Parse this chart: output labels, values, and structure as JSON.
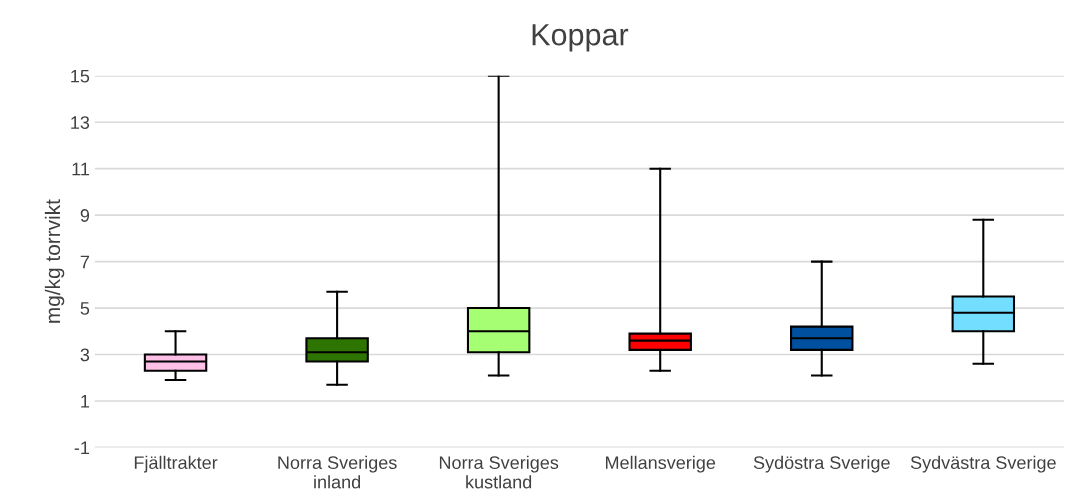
{
  "chart_data": {
    "type": "box",
    "title": "Koppar",
    "ylabel": "mg/kg torrvikt",
    "categories": [
      "Fjälltrakter",
      "Norra Sveriges\ninland",
      "Norra Sveriges\nkustland",
      "Mellansverige",
      "Sydöstra Sverige",
      "Sydvästra Sverige"
    ],
    "colors": [
      "#ffc0e8",
      "#2e7400",
      "#a6ff73",
      "#ff0000",
      "#0050a0",
      "#73deff"
    ],
    "boxes": [
      {
        "low": 1.9,
        "q1": 2.3,
        "median": 2.7,
        "q3": 3.0,
        "high": 4.0
      },
      {
        "low": 1.7,
        "q1": 2.7,
        "median": 3.1,
        "q3": 3.7,
        "high": 5.7
      },
      {
        "low": 2.1,
        "q1": 3.1,
        "median": 4.0,
        "q3": 5.0,
        "high": 15
      },
      {
        "low": 2.3,
        "q1": 3.2,
        "median": 3.6,
        "q3": 3.9,
        "high": 11
      },
      {
        "low": 2.1,
        "q1": 3.2,
        "median": 3.7,
        "q3": 4.2,
        "high": 7
      },
      {
        "low": 2.6,
        "q1": 4.0,
        "median": 4.8,
        "q3": 5.5,
        "high": 8.8
      }
    ],
    "ylim": [
      -1,
      15
    ],
    "yticks": [
      -1,
      1,
      3,
      5,
      7,
      9,
      11,
      13,
      15
    ],
    "grid": "y",
    "legend": false
  }
}
